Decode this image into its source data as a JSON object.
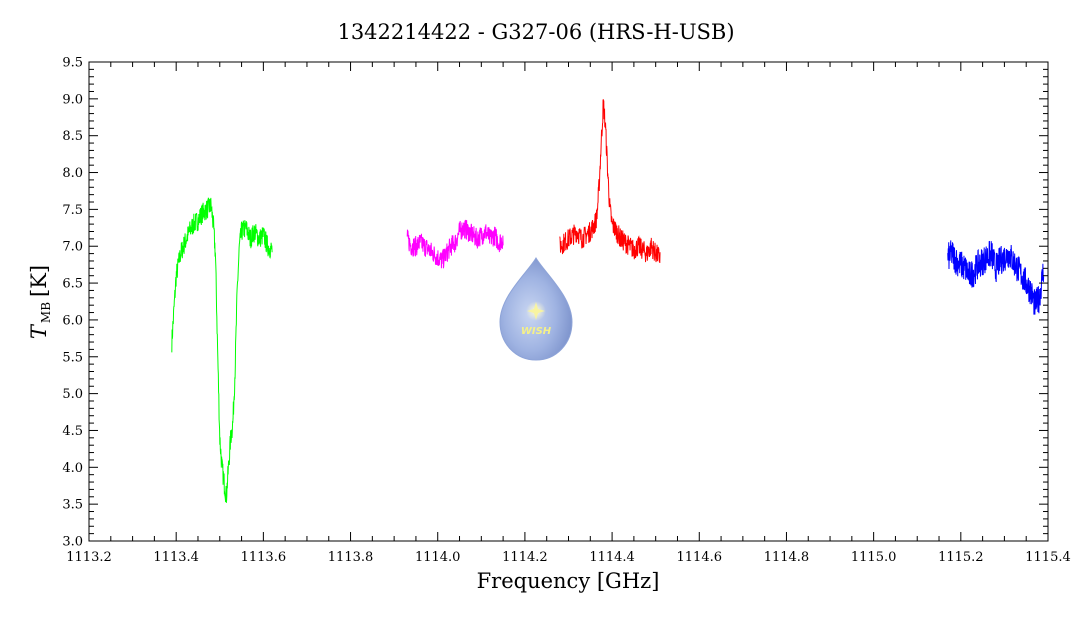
{
  "chart_data": {
    "type": "line",
    "title": "1342214422 - G327-06 (HRS-H-USB)",
    "xlabel": "Frequency [GHz]",
    "ylabel_main": "T",
    "ylabel_sub": "MB",
    "ylabel_unit": "[K]",
    "xlim": [
      1113.2,
      1115.4
    ],
    "ylim": [
      3.0,
      9.5
    ],
    "xticks": [
      "1113.2",
      "1113.4",
      "1113.6",
      "1113.8",
      "1114.0",
      "1114.2",
      "1114.4",
      "1114.6",
      "1114.8",
      "1115.0",
      "1115.2",
      "1115.4"
    ],
    "yticks": [
      "3.0",
      "3.5",
      "4.0",
      "4.5",
      "5.0",
      "5.5",
      "6.0",
      "6.5",
      "7.0",
      "7.5",
      "8.0",
      "8.5",
      "9.0",
      "9.5"
    ],
    "grid": false,
    "legend": "none",
    "series": [
      {
        "color": "#00ff00",
        "x": [
          1113.39,
          1113.4,
          1113.41,
          1113.42,
          1113.43,
          1113.44,
          1113.45,
          1113.46,
          1113.47,
          1113.48,
          1113.485,
          1113.49,
          1113.495,
          1113.5,
          1113.505,
          1113.51,
          1113.515,
          1113.52,
          1113.525,
          1113.53,
          1113.535,
          1113.54,
          1113.545,
          1113.55,
          1113.56,
          1113.57,
          1113.58,
          1113.59,
          1113.6,
          1113.61,
          1113.62
        ],
        "y": [
          5.7,
          6.6,
          6.9,
          7.05,
          7.2,
          7.3,
          7.35,
          7.45,
          7.5,
          7.55,
          7.3,
          6.9,
          5.6,
          4.4,
          4.0,
          3.8,
          3.6,
          4.0,
          4.4,
          4.6,
          5.3,
          6.4,
          7.0,
          7.2,
          7.25,
          7.1,
          7.2,
          7.1,
          7.15,
          7.0,
          6.95
        ]
      },
      {
        "color": "#ff00ff",
        "x": [
          1113.93,
          1113.94,
          1113.95,
          1113.96,
          1113.97,
          1113.98,
          1113.99,
          1114.0,
          1114.01,
          1114.02,
          1114.03,
          1114.04,
          1114.05,
          1114.06,
          1114.07,
          1114.08,
          1114.09,
          1114.1,
          1114.11,
          1114.12,
          1114.13,
          1114.14,
          1114.15
        ],
        "y": [
          7.1,
          7.0,
          7.0,
          7.05,
          7.0,
          6.95,
          6.9,
          6.85,
          6.8,
          6.9,
          7.0,
          7.05,
          7.2,
          7.25,
          7.2,
          7.15,
          7.1,
          7.15,
          7.2,
          7.1,
          7.15,
          7.05,
          7.1
        ]
      },
      {
        "color": "#ff0000",
        "x": [
          1114.28,
          1114.29,
          1114.3,
          1114.31,
          1114.32,
          1114.33,
          1114.34,
          1114.35,
          1114.36,
          1114.365,
          1114.37,
          1114.375,
          1114.38,
          1114.385,
          1114.39,
          1114.395,
          1114.4,
          1114.41,
          1114.42,
          1114.43,
          1114.44,
          1114.45,
          1114.46,
          1114.47,
          1114.48,
          1114.49,
          1114.5,
          1114.51
        ],
        "y": [
          7.0,
          7.05,
          7.1,
          7.15,
          7.2,
          7.1,
          7.15,
          7.2,
          7.3,
          7.4,
          7.8,
          8.4,
          8.95,
          8.6,
          8.0,
          7.5,
          7.3,
          7.2,
          7.1,
          7.05,
          7.0,
          6.95,
          7.0,
          6.95,
          6.9,
          7.0,
          6.9,
          6.85
        ]
      },
      {
        "color": "#0000ff",
        "x": [
          1115.17,
          1115.18,
          1115.19,
          1115.2,
          1115.21,
          1115.22,
          1115.23,
          1115.24,
          1115.25,
          1115.26,
          1115.27,
          1115.28,
          1115.29,
          1115.3,
          1115.31,
          1115.32,
          1115.33,
          1115.34,
          1115.35,
          1115.36,
          1115.37,
          1115.38,
          1115.39
        ],
        "y": [
          6.85,
          6.9,
          6.8,
          6.75,
          6.7,
          6.6,
          6.65,
          6.75,
          6.8,
          6.85,
          6.9,
          6.7,
          6.8,
          6.85,
          6.9,
          6.8,
          6.7,
          6.6,
          6.5,
          6.4,
          6.2,
          6.3,
          6.7
        ]
      }
    ]
  },
  "logo": {
    "text": "WISH"
  }
}
